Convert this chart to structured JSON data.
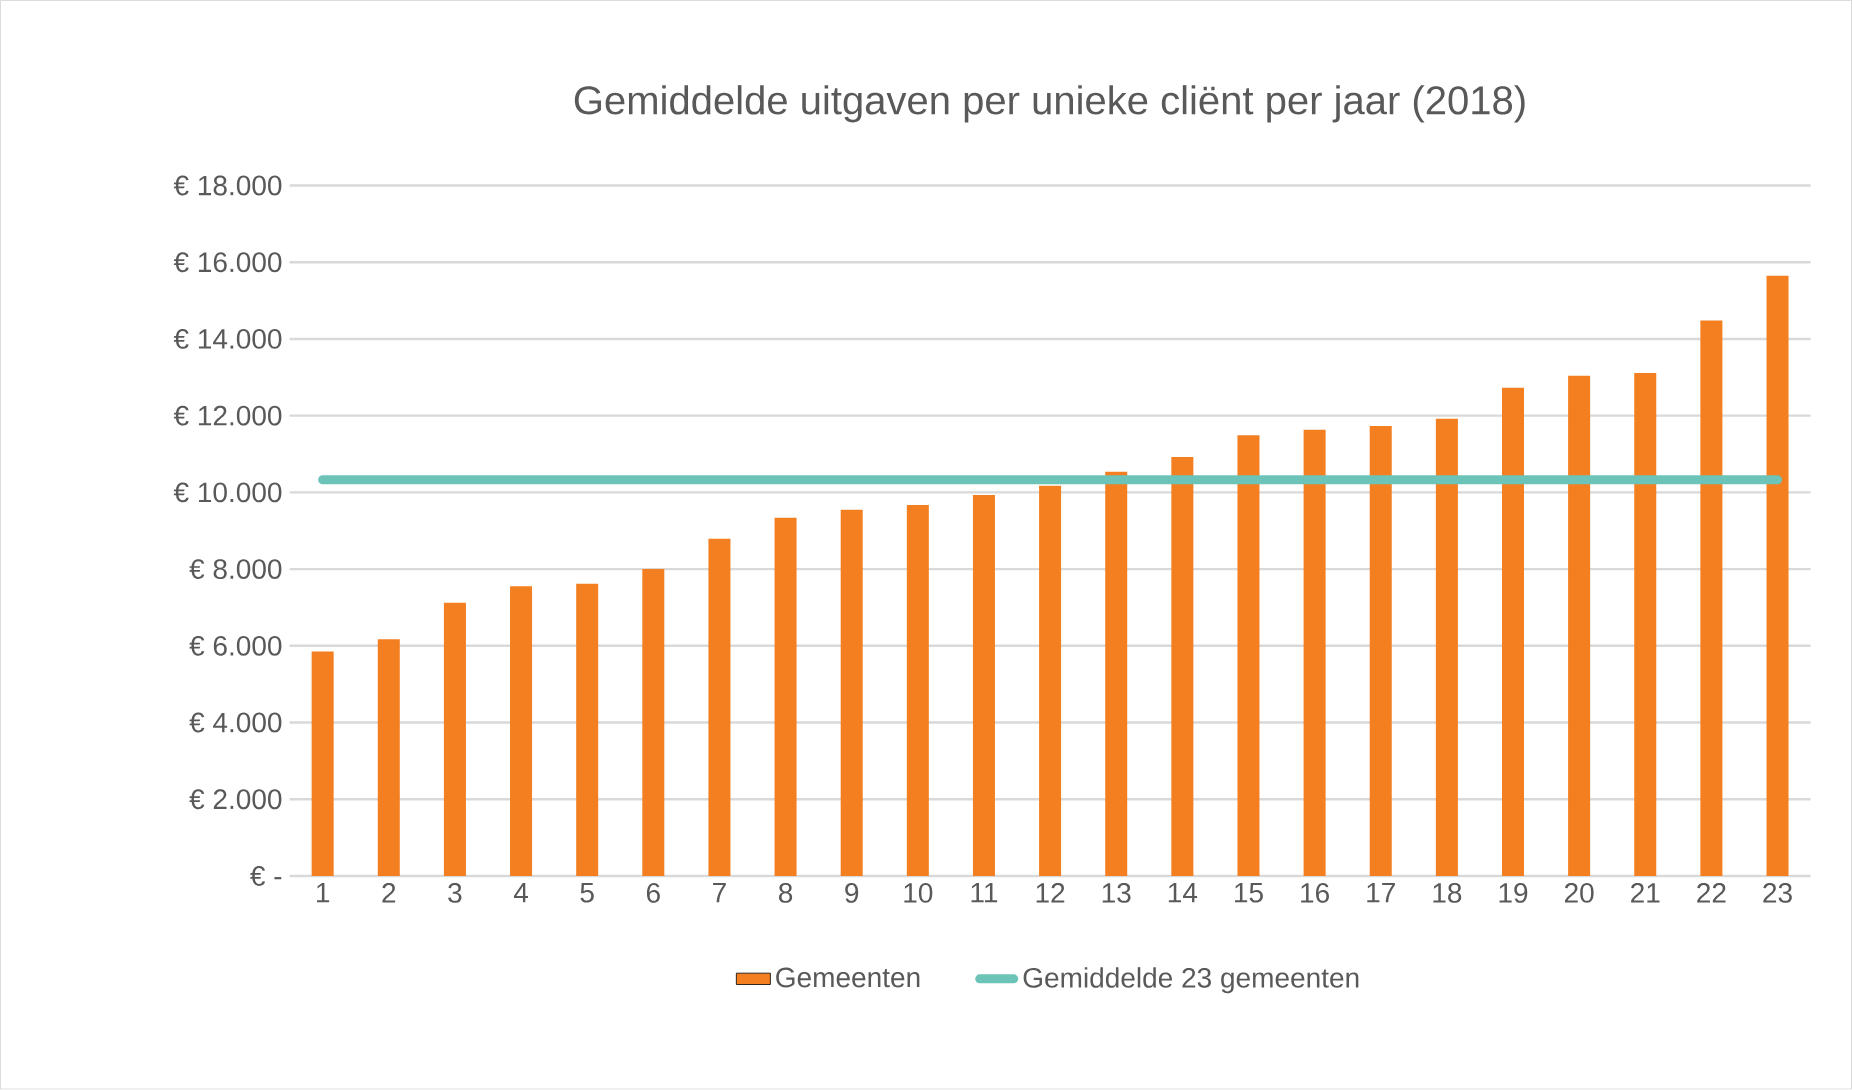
{
  "chart_data": {
    "type": "bar",
    "title": "Gemiddelde uitgaven per unieke cliënt per jaar (2018)",
    "categories": [
      "1",
      "2",
      "3",
      "4",
      "5",
      "6",
      "7",
      "8",
      "9",
      "10",
      "11",
      "12",
      "13",
      "14",
      "15",
      "16",
      "17",
      "18",
      "19",
      "20",
      "21",
      "22",
      "23"
    ],
    "series": [
      {
        "name": "Gemeenten",
        "color": "#f47f20",
        "values": [
          5850,
          6170,
          7120,
          7550,
          7620,
          8000,
          8790,
          9340,
          9550,
          9670,
          9930,
          10170,
          10540,
          10920,
          11490,
          11630,
          11730,
          11920,
          12730,
          13040,
          13110,
          14480,
          15650
        ]
      },
      {
        "name": "Gemiddelde 23 gemeenten",
        "type": "line",
        "color": "#6cc4b8",
        "values": [
          10330,
          10330,
          10330,
          10330,
          10330,
          10330,
          10330,
          10330,
          10330,
          10330,
          10330,
          10330,
          10330,
          10330,
          10330,
          10330,
          10330,
          10330,
          10330,
          10330,
          10330,
          10330,
          10330
        ]
      }
    ],
    "ylim": [
      0,
      18000
    ],
    "yticks": [
      {
        "value": 0,
        "label": "€ -"
      },
      {
        "value": 2000,
        "label": "€ 2.000"
      },
      {
        "value": 4000,
        "label": "€ 4.000"
      },
      {
        "value": 6000,
        "label": "€ 6.000"
      },
      {
        "value": 8000,
        "label": "€ 8.000"
      },
      {
        "value": 10000,
        "label": "€ 10.000"
      },
      {
        "value": 12000,
        "label": "€ 12.000"
      },
      {
        "value": 14000,
        "label": "€ 14.000"
      },
      {
        "value": 16000,
        "label": "€ 16.000"
      },
      {
        "value": 18000,
        "label": "€ 18.000"
      }
    ],
    "grid": "y",
    "legend": "bottom",
    "marker": "none"
  }
}
